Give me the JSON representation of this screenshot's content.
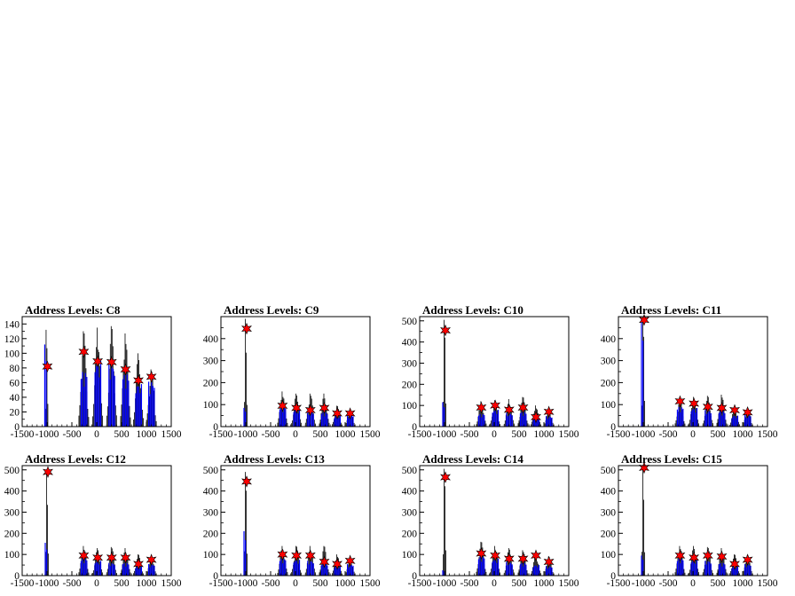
{
  "figure": {
    "colors": {
      "hist_black": "#000000",
      "hist_blue": "#0000ff",
      "marker": "#ff0000",
      "frame": "#000000"
    }
  },
  "chart_data": [
    {
      "type": "bar",
      "title": "Address Levels: C8",
      "xlim": [
        -1500,
        1500
      ],
      "ylim": [
        0,
        150
      ],
      "xticks": [
        -1500,
        -1000,
        -500,
        0,
        500,
        1000,
        1500
      ],
      "yticks": [
        0,
        20,
        40,
        60,
        80,
        100,
        120,
        140
      ],
      "groups": [
        {
          "x": -1010,
          "peak": 132,
          "fill": 112,
          "marker": 82
        },
        {
          "x": -260,
          "peak": 130,
          "fill": 75,
          "marker": 102
        },
        {
          "x": 20,
          "peak": 135,
          "fill": 90,
          "marker": 89
        },
        {
          "x": 300,
          "peak": 137,
          "fill": 85,
          "marker": 88
        },
        {
          "x": 580,
          "peak": 127,
          "fill": 72,
          "marker": 78
        },
        {
          "x": 840,
          "peak": 100,
          "fill": 58,
          "marker": 63
        },
        {
          "x": 1100,
          "peak": 78,
          "fill": 62,
          "marker": 68
        }
      ]
    },
    {
      "type": "bar",
      "title": "Address Levels: C9",
      "xlim": [
        -1500,
        1500
      ],
      "ylim": [
        0,
        500
      ],
      "xticks": [
        -1500,
        -1000,
        -500,
        0,
        500,
        1000,
        1500
      ],
      "yticks": [
        0,
        100,
        200,
        300,
        400
      ],
      "groups": [
        {
          "x": -1000,
          "peak": 490,
          "fill": 85,
          "marker": 445
        },
        {
          "x": -260,
          "peak": 160,
          "fill": 90,
          "marker": 95
        },
        {
          "x": 20,
          "peak": 150,
          "fill": 80,
          "marker": 85
        },
        {
          "x": 300,
          "peak": 150,
          "fill": 70,
          "marker": 75
        },
        {
          "x": 580,
          "peak": 150,
          "fill": 65,
          "marker": 85
        },
        {
          "x": 840,
          "peak": 95,
          "fill": 50,
          "marker": 60
        },
        {
          "x": 1100,
          "peak": 70,
          "fill": 55,
          "marker": 60
        }
      ]
    },
    {
      "type": "bar",
      "title": "Address Levels: C10",
      "xlim": [
        -1500,
        1500
      ],
      "ylim": [
        0,
        520
      ],
      "xticks": [
        -1500,
        -1000,
        -500,
        0,
        500,
        1000,
        1500
      ],
      "yticks": [
        0,
        100,
        200,
        300,
        400,
        500
      ],
      "groups": [
        {
          "x": -1000,
          "peak": 505,
          "fill": 115,
          "marker": 455
        },
        {
          "x": -260,
          "peak": 120,
          "fill": 60,
          "marker": 90
        },
        {
          "x": 20,
          "peak": 125,
          "fill": 80,
          "marker": 100
        },
        {
          "x": 300,
          "peak": 130,
          "fill": 65,
          "marker": 80
        },
        {
          "x": 580,
          "peak": 140,
          "fill": 70,
          "marker": 90
        },
        {
          "x": 840,
          "peak": 100,
          "fill": 40,
          "marker": 45
        },
        {
          "x": 1100,
          "peak": 80,
          "fill": 50,
          "marker": 70
        }
      ]
    },
    {
      "type": "bar",
      "title": "Address Levels: C11",
      "xlim": [
        -1500,
        1500
      ],
      "ylim": [
        0,
        500
      ],
      "xticks": [
        -1500,
        -1000,
        -500,
        0,
        500,
        1000,
        1500
      ],
      "yticks": [
        0,
        100,
        200,
        300,
        400
      ],
      "groups": [
        {
          "x": -1000,
          "peak": 495,
          "fill": 490,
          "marker": 485
        },
        {
          "x": -260,
          "peak": 130,
          "fill": 90,
          "marker": 115
        },
        {
          "x": 20,
          "peak": 135,
          "fill": 85,
          "marker": 105
        },
        {
          "x": 300,
          "peak": 140,
          "fill": 75,
          "marker": 90
        },
        {
          "x": 580,
          "peak": 145,
          "fill": 70,
          "marker": 85
        },
        {
          "x": 840,
          "peak": 90,
          "fill": 50,
          "marker": 75
        },
        {
          "x": 1100,
          "peak": 85,
          "fill": 55,
          "marker": 65
        }
      ]
    },
    {
      "type": "bar",
      "title": "Address Levels: C12",
      "xlim": [
        -1500,
        1500
      ],
      "ylim": [
        0,
        520
      ],
      "xticks": [
        -1500,
        -1000,
        -500,
        0,
        500,
        1000,
        1500
      ],
      "yticks": [
        0,
        100,
        200,
        300,
        400,
        500
      ],
      "groups": [
        {
          "x": -1000,
          "peak": 500,
          "fill": 155,
          "marker": 490
        },
        {
          "x": -260,
          "peak": 140,
          "fill": 80,
          "marker": 95
        },
        {
          "x": 20,
          "peak": 130,
          "fill": 70,
          "marker": 85
        },
        {
          "x": 300,
          "peak": 135,
          "fill": 60,
          "marker": 85
        },
        {
          "x": 580,
          "peak": 130,
          "fill": 60,
          "marker": 85
        },
        {
          "x": 840,
          "peak": 100,
          "fill": 45,
          "marker": 55
        },
        {
          "x": 1100,
          "peak": 85,
          "fill": 55,
          "marker": 75
        }
      ]
    },
    {
      "type": "bar",
      "title": "Address Levels: C13",
      "xlim": [
        -1500,
        1500
      ],
      "ylim": [
        0,
        520
      ],
      "xticks": [
        -1500,
        -1000,
        -500,
        0,
        500,
        1000,
        1500
      ],
      "yticks": [
        0,
        100,
        200,
        300,
        400,
        500
      ],
      "groups": [
        {
          "x": -1000,
          "peak": 490,
          "fill": 210,
          "marker": 445
        },
        {
          "x": -260,
          "peak": 140,
          "fill": 80,
          "marker": 100
        },
        {
          "x": 20,
          "peak": 140,
          "fill": 75,
          "marker": 95
        },
        {
          "x": 300,
          "peak": 140,
          "fill": 70,
          "marker": 95
        },
        {
          "x": 580,
          "peak": 140,
          "fill": 55,
          "marker": 65
        },
        {
          "x": 840,
          "peak": 100,
          "fill": 45,
          "marker": 55
        },
        {
          "x": 1100,
          "peak": 80,
          "fill": 55,
          "marker": 70
        }
      ]
    },
    {
      "type": "bar",
      "title": "Address Levels: C14",
      "xlim": [
        -1500,
        1500
      ],
      "ylim": [
        0,
        520
      ],
      "xticks": [
        -1500,
        -1000,
        -500,
        0,
        500,
        1000,
        1500
      ],
      "yticks": [
        0,
        100,
        200,
        300,
        400,
        500
      ],
      "groups": [
        {
          "x": -1000,
          "peak": 505,
          "fill": 25,
          "marker": 465
        },
        {
          "x": -260,
          "peak": 160,
          "fill": 90,
          "marker": 105
        },
        {
          "x": 20,
          "peak": 140,
          "fill": 80,
          "marker": 95
        },
        {
          "x": 300,
          "peak": 130,
          "fill": 65,
          "marker": 80
        },
        {
          "x": 580,
          "peak": 120,
          "fill": 60,
          "marker": 80
        },
        {
          "x": 840,
          "peak": 100,
          "fill": 50,
          "marker": 95
        },
        {
          "x": 1100,
          "peak": 90,
          "fill": 45,
          "marker": 65
        }
      ]
    },
    {
      "type": "bar",
      "title": "Address Levels: C15",
      "xlim": [
        -1500,
        1500
      ],
      "ylim": [
        0,
        520
      ],
      "xticks": [
        -1500,
        -1000,
        -500,
        0,
        500,
        1000,
        1500
      ],
      "yticks": [
        0,
        100,
        200,
        300,
        400,
        500
      ],
      "groups": [
        {
          "x": -1000,
          "peak": 515,
          "fill": 95,
          "marker": 510
        },
        {
          "x": -260,
          "peak": 140,
          "fill": 80,
          "marker": 95
        },
        {
          "x": 20,
          "peak": 140,
          "fill": 75,
          "marker": 85
        },
        {
          "x": 300,
          "peak": 135,
          "fill": 70,
          "marker": 95
        },
        {
          "x": 580,
          "peak": 130,
          "fill": 60,
          "marker": 90
        },
        {
          "x": 840,
          "peak": 100,
          "fill": 45,
          "marker": 55
        },
        {
          "x": 1100,
          "peak": 95,
          "fill": 55,
          "marker": 75
        }
      ]
    }
  ]
}
